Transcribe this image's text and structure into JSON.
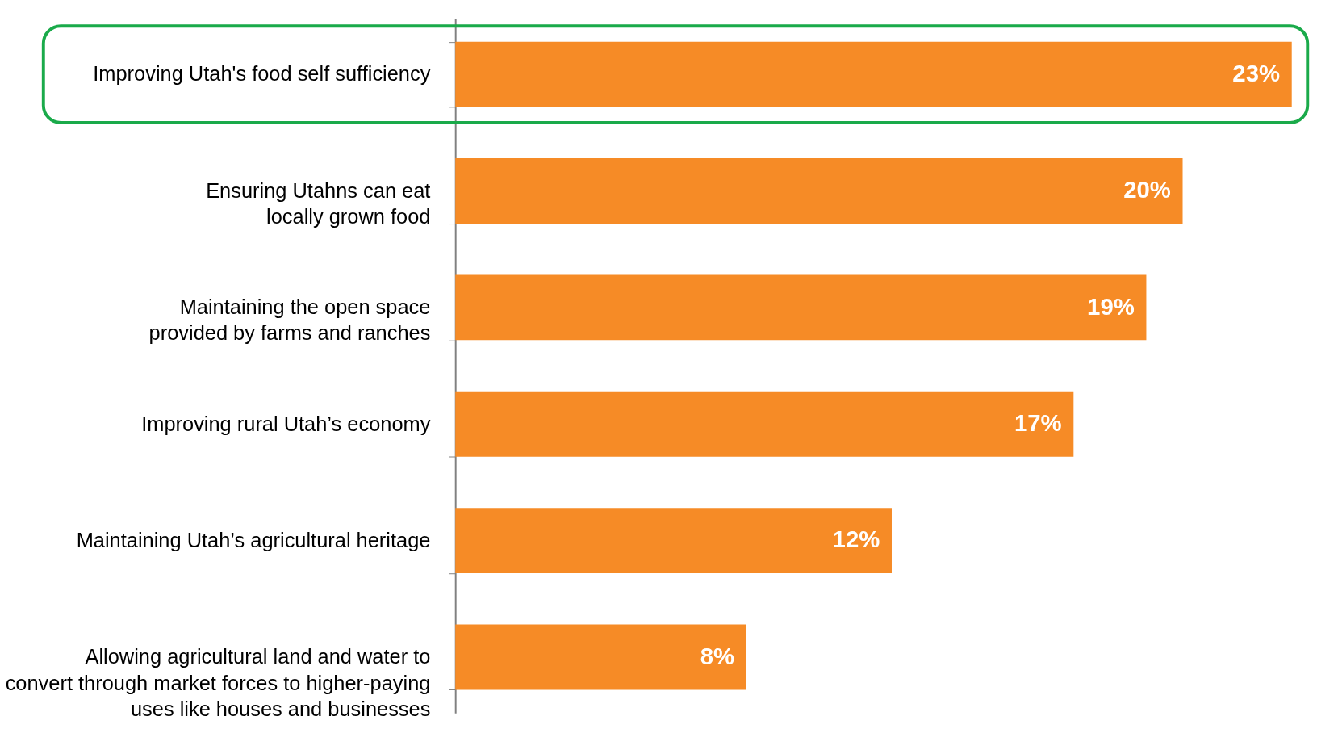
{
  "chart_data": {
    "type": "bar",
    "orientation": "horizontal",
    "categories": [
      "Improving Utah's food self sufficiency",
      "Ensuring Utahns can eat locally grown food",
      "Maintaining the open space provided by farms and ranches",
      "Improving rural Utah’s economy",
      "Maintaining Utah’s agricultural heritage",
      "Allowing agricultural land and water to convert through market forces to higher-paying uses like houses and businesses"
    ],
    "values": [
      23,
      20,
      19,
      17,
      12,
      8
    ],
    "value_labels": [
      "23%",
      "20%",
      "19%",
      "17%",
      "12%",
      "8%"
    ],
    "color": "#f68b26"
  }
}
